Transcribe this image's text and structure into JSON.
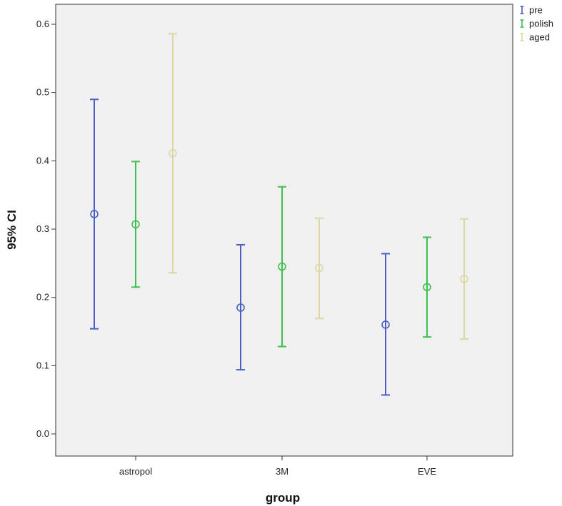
{
  "chart_data": {
    "type": "errorbar",
    "xlabel": "group",
    "ylabel": "95% CI",
    "categories": [
      "astropol",
      "3M",
      "EVE"
    ],
    "ylim": [
      0.0,
      0.6
    ],
    "yticks": [
      "0.0",
      "0.1",
      "0.2",
      "0.3",
      "0.4",
      "0.5",
      "0.6"
    ],
    "grid": false,
    "legend_position": "top-right",
    "series": [
      {
        "name": "pre",
        "color": "#4a5ec8",
        "mean": [
          0.322,
          0.185,
          0.16
        ],
        "lower": [
          0.154,
          0.094,
          0.057
        ],
        "upper": [
          0.49,
          0.277,
          0.264
        ]
      },
      {
        "name": "polish",
        "color": "#3fbf4f",
        "mean": [
          0.307,
          0.245,
          0.215
        ],
        "lower": [
          0.215,
          0.128,
          0.142
        ],
        "upper": [
          0.399,
          0.362,
          0.288
        ]
      },
      {
        "name": "aged",
        "color": "#ddd7a4",
        "mean": [
          0.411,
          0.243,
          0.227
        ],
        "lower": [
          0.236,
          0.169,
          0.139
        ],
        "upper": [
          0.586,
          0.316,
          0.315
        ]
      }
    ]
  }
}
